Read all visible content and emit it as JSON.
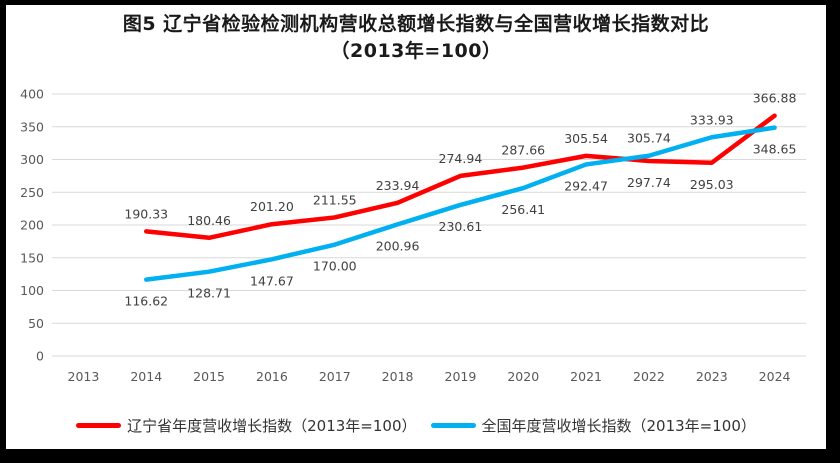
{
  "title": {
    "line1": "图5  辽宁省检验检测机构营收总额增长指数与全国营收增长指数对比",
    "line2": "（2013年=100）"
  },
  "legend": [
    {
      "label": "辽宁省年度营收增长指数（2013年=100）",
      "color": "#ff0000"
    },
    {
      "label": "全国年度营收增长指数（2013年=100）",
      "color": "#00b0f0"
    }
  ],
  "chart_data": {
    "type": "line",
    "title": "图5 辽宁省检验检测机构营收总额增长指数与全国营收增长指数对比（2013年=100）",
    "categories": [
      "2013",
      "2014",
      "2015",
      "2016",
      "2017",
      "2018",
      "2019",
      "2020",
      "2021",
      "2022",
      "2023",
      "2024"
    ],
    "series": [
      {
        "name": "辽宁省年度营收增长指数（2013年=100）",
        "color": "#ff0000",
        "values": [
          null,
          190.33,
          180.46,
          201.2,
          211.55,
          233.94,
          274.94,
          287.66,
          305.54,
          297.74,
          295.03,
          366.88
        ],
        "label_sides": [
          null,
          "above",
          "above",
          "above",
          "above",
          "above",
          "above",
          "above",
          "above",
          "below",
          "below",
          "above"
        ]
      },
      {
        "name": "全国年度营收增长指数（2013年=100）",
        "color": "#00b0f0",
        "values": [
          null,
          116.62,
          128.71,
          147.67,
          170.0,
          200.96,
          230.61,
          256.41,
          292.47,
          305.74,
          333.93,
          348.65
        ],
        "label_sides": [
          null,
          "below",
          "below",
          "below",
          "below",
          "below",
          "below",
          "below",
          "below",
          "above",
          "above",
          "below"
        ]
      }
    ],
    "xlabel": "",
    "ylabel": "",
    "ylim": [
      0,
      400
    ],
    "yticks": [
      0,
      50,
      100,
      150,
      200,
      250,
      300,
      350,
      400
    ],
    "grid": true,
    "legend_position": "bottom",
    "gridline_color": "#d9d9d9",
    "axis_label_color": "#595959",
    "data_label_color": "#404040",
    "background_color": "#ffffff",
    "frame_color": "#000000"
  }
}
